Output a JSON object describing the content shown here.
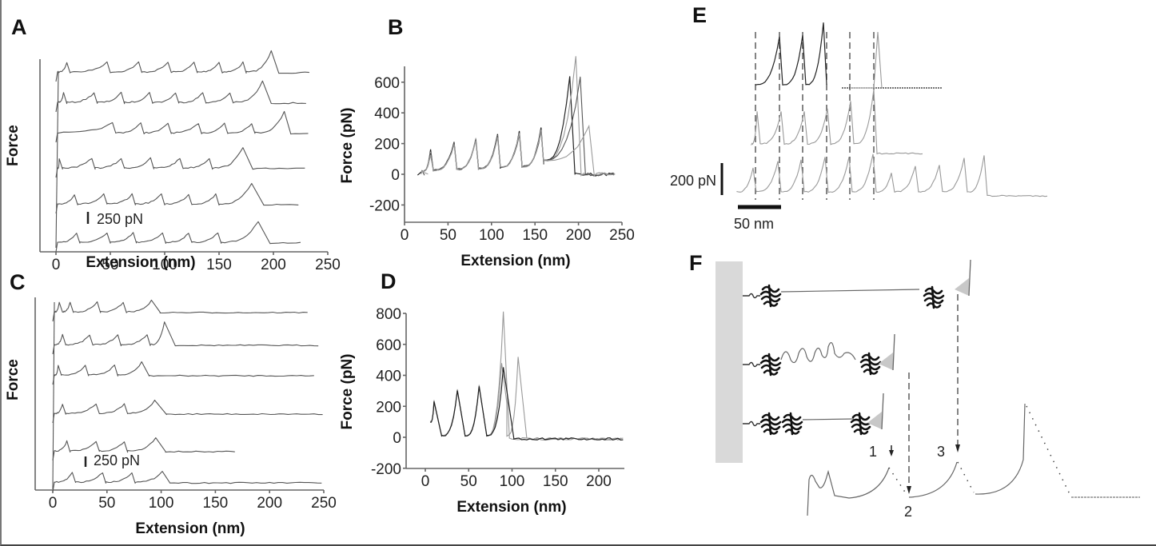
{
  "chart_data": [
    {
      "id": "A",
      "type": "line",
      "panel_label": "A",
      "title": "",
      "xlabel": "Extension (nm)",
      "ylabel": "Force",
      "xlim": [
        0,
        250
      ],
      "xticks": [
        0,
        50,
        100,
        150,
        200,
        250
      ],
      "scale_bar": "250 pN",
      "layout": "stacked offset traces",
      "series": [
        {
          "name": "trace-1",
          "peaks_nm": [
            10,
            47,
            76,
            103,
            127,
            150,
            172,
            198
          ],
          "detach_nm": 205,
          "end_nm": 235
        },
        {
          "name": "trace-2",
          "peaks_nm": [
            7,
            35,
            60,
            86,
            110,
            135,
            160,
            190
          ],
          "detach_nm": 198,
          "end_nm": 232
        },
        {
          "name": "trace-3",
          "peaks_nm": [
            52,
            78,
            103,
            131,
            155,
            180,
            210
          ],
          "detach_nm": 216,
          "end_nm": 232
        },
        {
          "name": "trace-4",
          "peaks_nm": [
            3,
            33,
            60,
            87,
            114,
            141,
            172
          ],
          "detach_nm": 181,
          "end_nm": 230
        },
        {
          "name": "trace-5",
          "peaks_nm": [
            17,
            44,
            70,
            97,
            122,
            147,
            180
          ],
          "detach_nm": 191,
          "end_nm": 225
        },
        {
          "name": "trace-6",
          "peaks_nm": [
            19,
            47,
            71,
            98,
            122,
            149,
            186
          ],
          "detach_nm": 197,
          "end_nm": 228
        }
      ]
    },
    {
      "id": "B",
      "type": "line",
      "panel_label": "B",
      "title": "",
      "xlabel": "Extension (nm)",
      "ylabel": "Force (pN)",
      "xlim": [
        0,
        250
      ],
      "ylim": [
        -300,
        700
      ],
      "xticks": [
        0,
        50,
        100,
        150,
        200,
        250
      ],
      "yticks": [
        -200,
        0,
        200,
        400,
        600
      ],
      "series": [
        {
          "name": "overlay-1",
          "peaks": [
            [
              30,
              160
            ],
            [
              57,
              210
            ],
            [
              82,
              230
            ],
            [
              107,
              260
            ],
            [
              132,
              280
            ],
            [
              157,
              300
            ],
            [
              190,
              640
            ]
          ]
        },
        {
          "name": "overlay-2",
          "peaks": [
            [
              30,
              150
            ],
            [
              57,
              200
            ],
            [
              82,
              240
            ],
            [
              107,
              250
            ],
            [
              132,
              270
            ],
            [
              157,
              290
            ],
            [
              197,
              770
            ]
          ]
        },
        {
          "name": "overlay-3",
          "peaks": [
            [
              30,
              140
            ],
            [
              57,
              200
            ],
            [
              82,
              220
            ],
            [
              107,
              250
            ],
            [
              132,
              260
            ],
            [
              157,
              280
            ],
            [
              202,
              630
            ]
          ]
        },
        {
          "name": "overlay-4",
          "peaks": [
            [
              30,
              130
            ],
            [
              57,
              190
            ],
            [
              82,
              220
            ],
            [
              107,
              240
            ],
            [
              132,
              270
            ],
            [
              157,
              290
            ],
            [
              212,
              310
            ]
          ]
        }
      ]
    },
    {
      "id": "C",
      "type": "line",
      "panel_label": "C",
      "title": "",
      "xlabel": "Extension (nm)",
      "ylabel": "Force",
      "xlim": [
        0,
        250
      ],
      "xticks": [
        0,
        50,
        100,
        150,
        200,
        250
      ],
      "scale_bar": "250 pN",
      "layout": "stacked offset traces",
      "series": [
        {
          "name": "trace-1",
          "peaks_nm": [
            6,
            16,
            41,
            65,
            91
          ],
          "detach_nm": 99,
          "end_nm": 236
        },
        {
          "name": "trace-2",
          "peaks_nm": [
            9,
            34,
            60,
            87,
            103
          ],
          "detach_nm": 113,
          "end_nm": 247
        },
        {
          "name": "trace-3",
          "peaks_nm": [
            5,
            30,
            57,
            82
          ],
          "detach_nm": 89,
          "end_nm": 243
        },
        {
          "name": "trace-4",
          "peaks_nm": [
            9,
            40,
            66,
            94
          ],
          "detach_nm": 105,
          "end_nm": 250
        },
        {
          "name": "trace-5",
          "peaks_nm": [
            13,
            40,
            66,
            95
          ],
          "detach_nm": 104,
          "end_nm": 168
        },
        {
          "name": "trace-6",
          "peaks_nm": [
            18,
            46,
            73,
            101
          ],
          "detach_nm": 108,
          "end_nm": 248
        }
      ]
    },
    {
      "id": "D",
      "type": "line",
      "panel_label": "D",
      "title": "",
      "xlabel": "Extension (nm)",
      "ylabel": "Force (pN)",
      "xlim": [
        -20,
        230
      ],
      "ylim": [
        -200,
        800
      ],
      "xticks": [
        0,
        50,
        100,
        150,
        200
      ],
      "yticks": [
        -200,
        0,
        200,
        400,
        600,
        800
      ],
      "series": [
        {
          "name": "overlay-1",
          "peaks": [
            [
              10,
              240
            ],
            [
              37,
              310
            ],
            [
              62,
              340
            ],
            [
              90,
              810
            ]
          ],
          "detach_nm": 97
        },
        {
          "name": "overlay-2",
          "peaks": [
            [
              10,
              230
            ],
            [
              37,
              300
            ],
            [
              62,
              330
            ],
            [
              88,
              480
            ],
            [
              107,
              520
            ]
          ],
          "detach_nm": 117
        },
        {
          "name": "overlay-3",
          "peaks": [
            [
              10,
              230
            ],
            [
              37,
              300
            ],
            [
              62,
              330
            ],
            [
              90,
              450
            ]
          ],
          "detach_nm": 102
        }
      ]
    },
    {
      "id": "E",
      "type": "line",
      "panel_label": "E",
      "title": "",
      "scale_bar_force": "200 pN",
      "scale_bar_extension": "50 nm",
      "dashed_guides": 6,
      "series": [
        {
          "name": "trace-top",
          "peaks": 6
        },
        {
          "name": "trace-middle",
          "peaks": 6
        },
        {
          "name": "trace-bottom",
          "peaks": 12
        }
      ]
    }
  ],
  "diagram_F": {
    "panel_label": "F",
    "step_labels": [
      "1",
      "2",
      "3"
    ],
    "rows": [
      {
        "name": "fully-extended",
        "left_domains": 1,
        "right_domains": 1,
        "linker": "straight"
      },
      {
        "name": "partially-unfolded",
        "left_domains": 1,
        "right_domains": 1,
        "linker": "wavy"
      },
      {
        "name": "folded",
        "left_domains": 2,
        "right_domains": 1,
        "linker": "straight"
      }
    ]
  }
}
